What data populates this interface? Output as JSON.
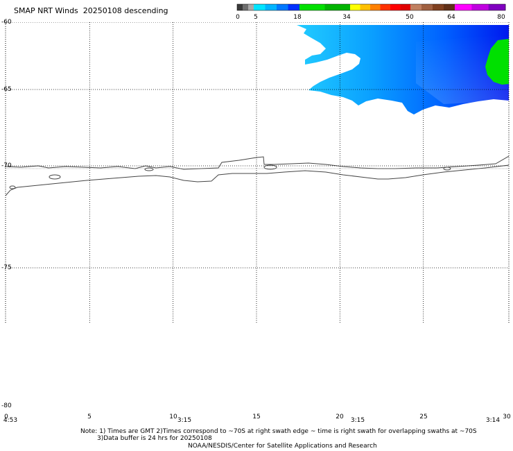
{
  "title": "SMAP NRT Winds  20250108 descending",
  "colorbar": {
    "labels": [
      "0",
      "5",
      "18",
      "34",
      "50",
      "64",
      "80"
    ],
    "segments": [
      {
        "from": 0,
        "to": 5,
        "colors": [
          "#3a3a3a",
          "#6e6e6e",
          "#a9a9a9"
        ]
      },
      {
        "from": 5,
        "to": 18,
        "colors": [
          "#00e5ff",
          "#00b4ff",
          "#0078ff",
          "#0030ff"
        ]
      },
      {
        "from": 18,
        "to": 34,
        "colors": [
          "#00e000",
          "#00b400"
        ]
      },
      {
        "from": 34,
        "to": 50,
        "colors": [
          "#ffff00",
          "#ffc000",
          "#ff8000",
          "#ff3000",
          "#ff0000",
          "#e00000"
        ]
      },
      {
        "from": 50,
        "to": 64,
        "colors": [
          "#c08060",
          "#a06040",
          "#804020",
          "#603018"
        ]
      },
      {
        "from": 64,
        "to": 80,
        "colors": [
          "#ff00ff",
          "#c000e0",
          "#8000c0"
        ]
      }
    ]
  },
  "axes": {
    "lat_labels": [
      "-60",
      "-65",
      "-70",
      "-75",
      "-80"
    ],
    "lat_values": [
      -60,
      -65,
      -70,
      -75,
      -80
    ],
    "lon_labels": [
      "0",
      "5",
      "10",
      "15",
      "20",
      "25",
      "30"
    ],
    "lon_values": [
      0,
      5,
      10,
      15,
      20,
      25,
      30
    ],
    "time_labels": [
      "4:53",
      "3:15",
      "3:15",
      "3:14"
    ]
  },
  "notes": {
    "line1": "Note: 1) Times are GMT 2)Times correspond to ~70S at right swath edge ~ time is right swath for overlapping swaths at ~70S",
    "line2": "3)Data buffer is 24 hrs for 20250108",
    "line3": "NOAA/NESDIS/Center for Satellite Applications and Research"
  },
  "colors": {
    "wind_light": "#00b4ff",
    "wind_mid": "#0078ff",
    "wind_strong": "#0030ff",
    "wind_green": "#00e000"
  }
}
